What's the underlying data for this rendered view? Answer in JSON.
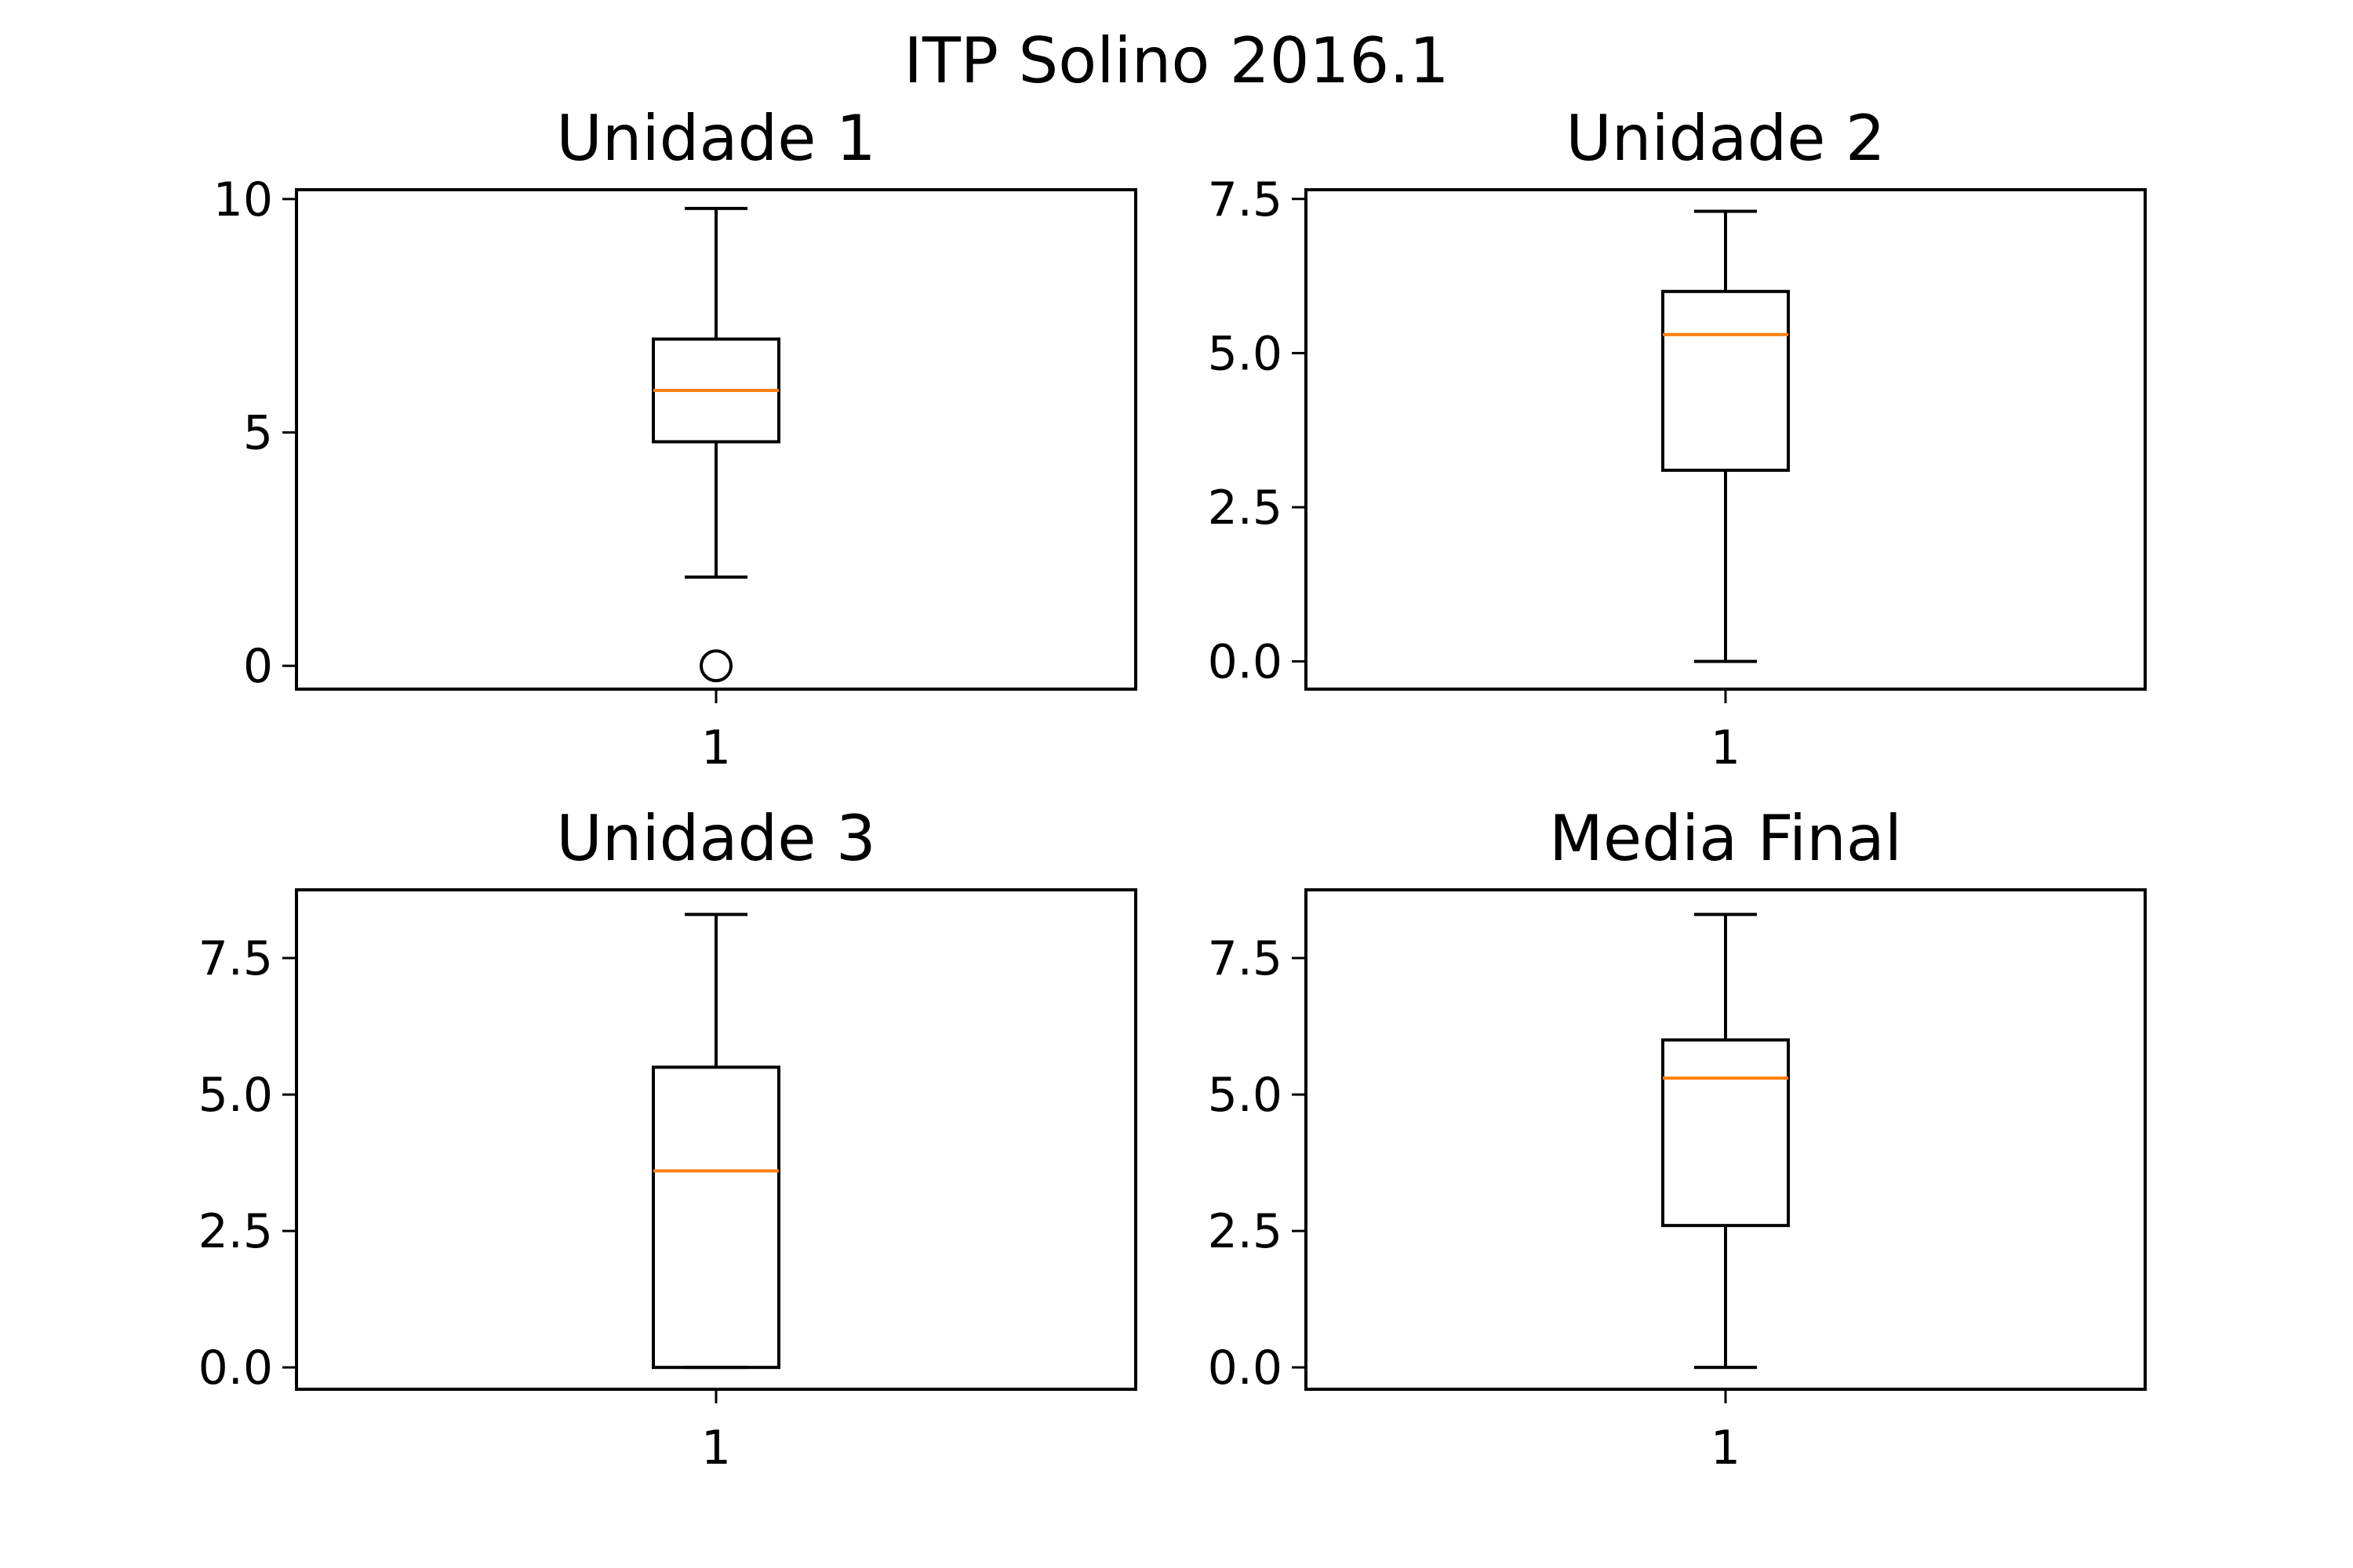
{
  "figure": {
    "title": "ITP Solino 2016.1",
    "colors": {
      "box": "#000000",
      "median": "#ff7f0e",
      "background": "#ffffff"
    }
  },
  "chart_data": [
    {
      "type": "boxplot",
      "title": "Unidade 1",
      "categories": [
        "1"
      ],
      "ylim": [
        -0.5,
        10.2
      ],
      "yticks": [
        0,
        5,
        10
      ],
      "ytick_labels": [
        "0",
        "5",
        "10"
      ],
      "stats": {
        "whislo": 1.9,
        "q1": 4.8,
        "med": 5.9,
        "q3": 7.0,
        "whishi": 9.8,
        "fliers": [
          0
        ]
      }
    },
    {
      "type": "boxplot",
      "title": "Unidade 2",
      "categories": [
        "1"
      ],
      "ylim": [
        -0.45,
        7.65
      ],
      "yticks": [
        0,
        2.5,
        5,
        7.5
      ],
      "ytick_labels": [
        "0.0",
        "2.5",
        "5.0",
        "7.5"
      ],
      "stats": {
        "whislo": 0,
        "q1": 3.1,
        "med": 5.3,
        "q3": 6.0,
        "whishi": 7.3,
        "fliers": []
      }
    },
    {
      "type": "boxplot",
      "title": "Unidade 3",
      "categories": [
        "1"
      ],
      "ylim": [
        -0.4,
        8.75
      ],
      "yticks": [
        0,
        2.5,
        5,
        7.5
      ],
      "ytick_labels": [
        "0.0",
        "2.5",
        "5.0",
        "7.5"
      ],
      "stats": {
        "whislo": 0,
        "q1": 0,
        "med": 3.6,
        "q3": 5.5,
        "whishi": 8.3,
        "fliers": []
      }
    },
    {
      "type": "boxplot",
      "title": "Media Final",
      "categories": [
        "1"
      ],
      "ylim": [
        -0.4,
        8.75
      ],
      "yticks": [
        0,
        2.5,
        5,
        7.5
      ],
      "ytick_labels": [
        "0.0",
        "2.5",
        "5.0",
        "7.5"
      ],
      "stats": {
        "whislo": 0,
        "q1": 2.6,
        "med": 5.3,
        "q3": 6.0,
        "whishi": 8.3,
        "fliers": []
      }
    }
  ]
}
